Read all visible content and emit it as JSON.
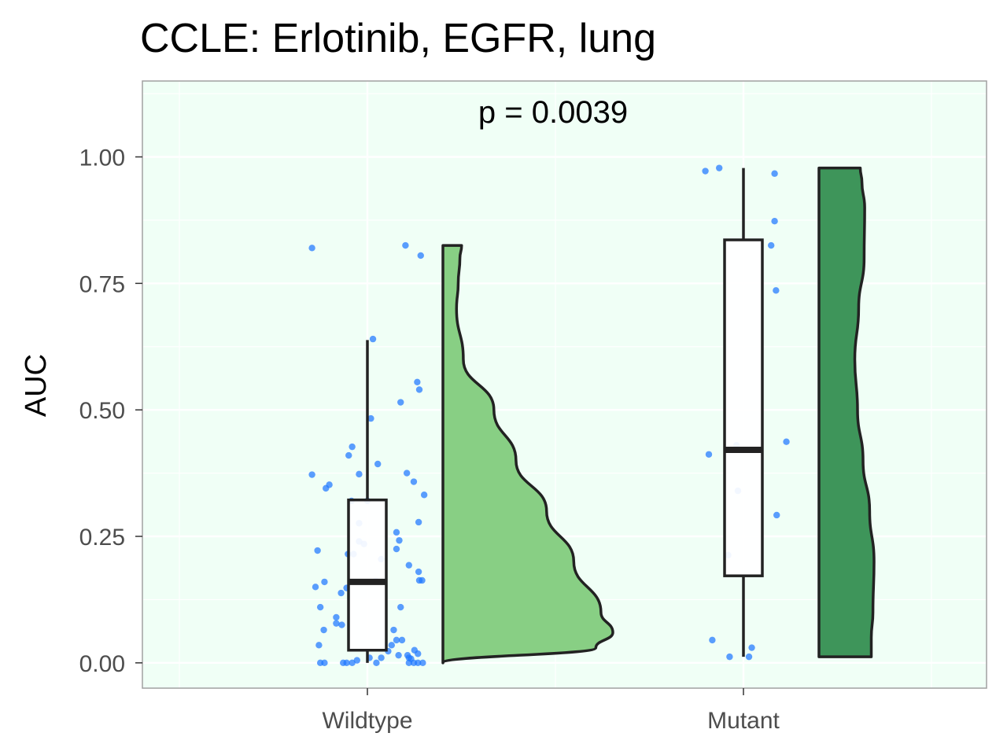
{
  "chart_data": {
    "type": "raincloud",
    "title": "CCLE: Erlotinib, EGFR, lung",
    "xlabel": "",
    "ylabel": "AUC",
    "annotation": "p = 0.0039",
    "ylim": [
      -0.05,
      1.15
    ],
    "yticks": [
      0.0,
      0.25,
      0.5,
      0.75,
      1.0
    ],
    "ytick_labels": [
      "0.00",
      "0.25",
      "0.50",
      "0.75",
      "1.00"
    ],
    "categories": [
      "Wildtype",
      "Mutant"
    ],
    "grid": true,
    "legend": "none",
    "colors": {
      "panel_bg": "#f0fff6",
      "grid": "#ffffff",
      "border": "#a0a0a0",
      "points": "#1f77ff",
      "box_fill": "#ffffff",
      "outline": "#222222",
      "wildtype_violin": "#88cf84",
      "mutant_violin": "#3e955a"
    },
    "groups": [
      {
        "name": "Wildtype",
        "box": {
          "min": 0.0,
          "q1": 0.025,
          "median": 0.16,
          "q3": 0.322,
          "max": 0.638
        },
        "density": [
          [
            0.0,
            0.0
          ],
          [
            0.03,
            0.9
          ],
          [
            0.06,
            1.0
          ],
          [
            0.1,
            0.93
          ],
          [
            0.2,
            0.77
          ],
          [
            0.3,
            0.61
          ],
          [
            0.4,
            0.43
          ],
          [
            0.5,
            0.3
          ],
          [
            0.6,
            0.12
          ],
          [
            0.7,
            0.08
          ],
          [
            0.75,
            0.09
          ],
          [
            0.8,
            0.1
          ],
          [
            0.825,
            0.11
          ]
        ],
        "points": [
          {
            "dx": -0.8,
            "y": 0.82
          },
          {
            "dx": 0.55,
            "y": 0.825
          },
          {
            "dx": 0.77,
            "y": 0.805
          },
          {
            "dx": 0.08,
            "y": 0.64
          },
          {
            "dx": 0.72,
            "y": 0.555
          },
          {
            "dx": 0.75,
            "y": 0.54
          },
          {
            "dx": 0.48,
            "y": 0.515
          },
          {
            "dx": 0.05,
            "y": 0.483
          },
          {
            "dx": -0.22,
            "y": 0.427
          },
          {
            "dx": -0.27,
            "y": 0.41
          },
          {
            "dx": 0.15,
            "y": 0.393
          },
          {
            "dx": -0.8,
            "y": 0.372
          },
          {
            "dx": -0.12,
            "y": 0.373
          },
          {
            "dx": 0.57,
            "y": 0.375
          },
          {
            "dx": 0.67,
            "y": 0.358
          },
          {
            "dx": -0.55,
            "y": 0.352
          },
          {
            "dx": -0.6,
            "y": 0.345
          },
          {
            "dx": 0.82,
            "y": 0.332
          },
          {
            "dx": -0.23,
            "y": 0.32
          },
          {
            "dx": 0.0,
            "y": 0.32
          },
          {
            "dx": -0.12,
            "y": 0.276
          },
          {
            "dx": 0.74,
            "y": 0.278
          },
          {
            "dx": 0.42,
            "y": 0.258
          },
          {
            "dx": 0.46,
            "y": 0.242
          },
          {
            "dx": -0.12,
            "y": 0.24
          },
          {
            "dx": -0.05,
            "y": 0.235
          },
          {
            "dx": -0.72,
            "y": 0.222
          },
          {
            "dx": 0.42,
            "y": 0.225
          },
          {
            "dx": -0.28,
            "y": 0.215
          },
          {
            "dx": -0.2,
            "y": 0.215
          },
          {
            "dx": 0.2,
            "y": 0.205
          },
          {
            "dx": 0.6,
            "y": 0.193
          },
          {
            "dx": 0.74,
            "y": 0.18
          },
          {
            "dx": 0.75,
            "y": 0.163
          },
          {
            "dx": 0.79,
            "y": 0.163
          },
          {
            "dx": -0.62,
            "y": 0.16
          },
          {
            "dx": -0.38,
            "y": 0.138
          },
          {
            "dx": -0.3,
            "y": 0.148
          },
          {
            "dx": 0.12,
            "y": 0.162
          },
          {
            "dx": -0.75,
            "y": 0.15
          },
          {
            "dx": 0.48,
            "y": 0.11
          },
          {
            "dx": -0.68,
            "y": 0.11
          },
          {
            "dx": -0.45,
            "y": 0.09
          },
          {
            "dx": -0.45,
            "y": 0.078
          },
          {
            "dx": -0.37,
            "y": 0.075
          },
          {
            "dx": -0.63,
            "y": 0.065
          },
          {
            "dx": 0.38,
            "y": 0.065
          },
          {
            "dx": 0.42,
            "y": 0.045
          },
          {
            "dx": 0.5,
            "y": 0.045
          },
          {
            "dx": -0.7,
            "y": 0.035
          },
          {
            "dx": 0.35,
            "y": 0.035
          },
          {
            "dx": 0.3,
            "y": 0.023
          },
          {
            "dx": 0.68,
            "y": 0.025
          },
          {
            "dx": 0.73,
            "y": 0.018
          },
          {
            "dx": 0.45,
            "y": 0.015
          },
          {
            "dx": 0.58,
            "y": 0.015
          },
          {
            "dx": 0.6,
            "y": 0.01
          },
          {
            "dx": 0.03,
            "y": 0.01
          },
          {
            "dx": 0.2,
            "y": 0.01
          },
          {
            "dx": -0.15,
            "y": 0.005
          },
          {
            "dx": 0.63,
            "y": 0.008
          },
          {
            "dx": -0.68,
            "y": 0.0
          },
          {
            "dx": -0.62,
            "y": 0.0
          },
          {
            "dx": -0.35,
            "y": 0.0
          },
          {
            "dx": -0.3,
            "y": 0.0
          },
          {
            "dx": -0.22,
            "y": 0.0
          },
          {
            "dx": 0.13,
            "y": 0.0
          },
          {
            "dx": 0.6,
            "y": 0.0
          },
          {
            "dx": 0.67,
            "y": 0.0
          },
          {
            "dx": 0.73,
            "y": 0.0
          },
          {
            "dx": 0.8,
            "y": 0.0
          }
        ]
      },
      {
        "name": "Mutant",
        "box": {
          "min": 0.012,
          "q1": 0.172,
          "median": 0.421,
          "q3": 0.836,
          "max": 0.978
        },
        "density": [
          [
            0.012,
            0.95
          ],
          [
            0.05,
            0.95
          ],
          [
            0.1,
            0.98
          ],
          [
            0.2,
            1.0
          ],
          [
            0.3,
            0.92
          ],
          [
            0.4,
            0.8
          ],
          [
            0.5,
            0.7
          ],
          [
            0.6,
            0.65
          ],
          [
            0.7,
            0.72
          ],
          [
            0.8,
            0.82
          ],
          [
            0.9,
            0.83
          ],
          [
            0.95,
            0.78
          ],
          [
            0.978,
            0.75
          ]
        ],
        "points": [
          {
            "dx": -0.55,
            "y": 0.972
          },
          {
            "dx": -0.35,
            "y": 0.978
          },
          {
            "dx": 0.45,
            "y": 0.967
          },
          {
            "dx": 0.45,
            "y": 0.873
          },
          {
            "dx": 0.4,
            "y": 0.825
          },
          {
            "dx": 0.47,
            "y": 0.736
          },
          {
            "dx": 0.62,
            "y": 0.437
          },
          {
            "dx": -0.1,
            "y": 0.43
          },
          {
            "dx": -0.5,
            "y": 0.412
          },
          {
            "dx": -0.08,
            "y": 0.34
          },
          {
            "dx": 0.48,
            "y": 0.292
          },
          {
            "dx": -0.22,
            "y": 0.213
          },
          {
            "dx": -0.45,
            "y": 0.045
          },
          {
            "dx": 0.12,
            "y": 0.03
          },
          {
            "dx": -0.2,
            "y": 0.012
          },
          {
            "dx": 0.08,
            "y": 0.012
          }
        ]
      }
    ]
  }
}
